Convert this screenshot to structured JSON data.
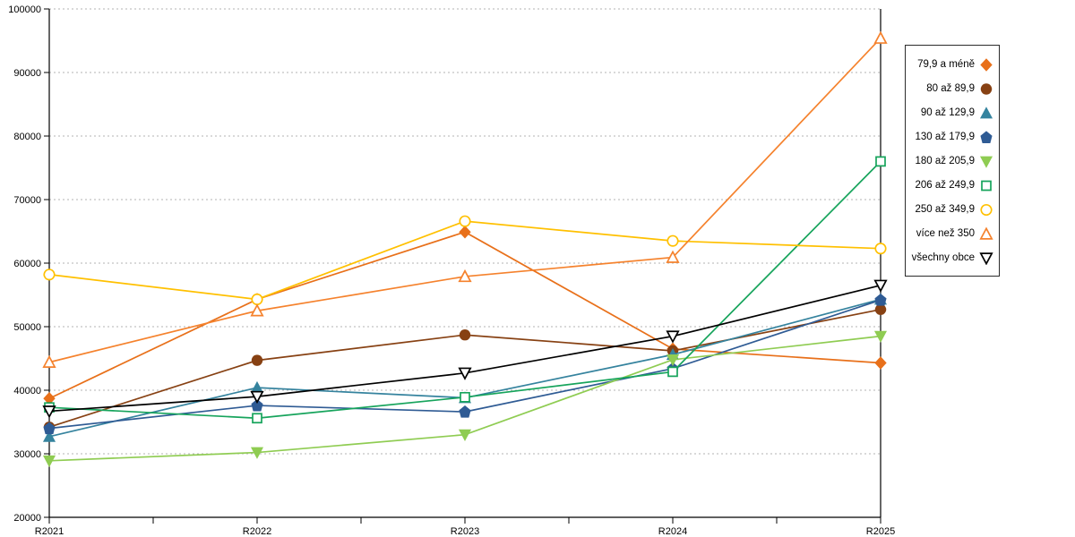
{
  "chart_data": {
    "type": "line",
    "title": "",
    "xlabel": "",
    "ylabel": "",
    "categories": [
      "R2021",
      "R2022",
      "R2023",
      "R2024",
      "R2025"
    ],
    "series": [
      {
        "name": "79,9 a méně",
        "marker": "diamond-filled",
        "color": "#E8701A",
        "values": [
          38700,
          54300,
          64900,
          46500,
          44300
        ]
      },
      {
        "name": "80 až 89,9",
        "marker": "circle-filled",
        "color": "#874113",
        "values": [
          34200,
          44700,
          48700,
          46200,
          52700
        ]
      },
      {
        "name": "90 až 129,9",
        "marker": "triangle-up-filled",
        "color": "#35839E",
        "values": [
          32700,
          40400,
          38800,
          45600,
          54300
        ]
      },
      {
        "name": "130 až 179,9",
        "marker": "pentagon-filled",
        "color": "#2F5B94",
        "values": [
          34000,
          37600,
          36600,
          43400,
          54200
        ]
      },
      {
        "name": "180 až 205,9",
        "marker": "triangle-down-filled",
        "color": "#8FCC52",
        "values": [
          28900,
          30200,
          33000,
          44800,
          48500
        ]
      },
      {
        "name": "206 až 249,9",
        "marker": "square-open",
        "color": "#17A45C",
        "values": [
          37300,
          35600,
          38900,
          42900,
          76000
        ]
      },
      {
        "name": "250 až 349,9",
        "marker": "circle-open",
        "color": "#FFC000",
        "values": [
          58200,
          54300,
          66600,
          63500,
          62300
        ]
      },
      {
        "name": "více než 350",
        "marker": "triangle-up-open",
        "color": "#F5822D",
        "values": [
          44400,
          52500,
          57900,
          60900,
          95400
        ]
      },
      {
        "name": "všechny obce",
        "marker": "triangle-down-open",
        "color": "#000000",
        "values": [
          36700,
          39000,
          42700,
          48500,
          56500
        ]
      }
    ],
    "ylim": [
      20000,
      100000
    ],
    "y_tick_step": 10000,
    "y_tick_labels": [
      "20000",
      "30000",
      "40000",
      "50000",
      "60000",
      "70000",
      "80000",
      "90000",
      "100000"
    ],
    "grid": "horizontal-dashed",
    "legend_position": "right-box"
  }
}
